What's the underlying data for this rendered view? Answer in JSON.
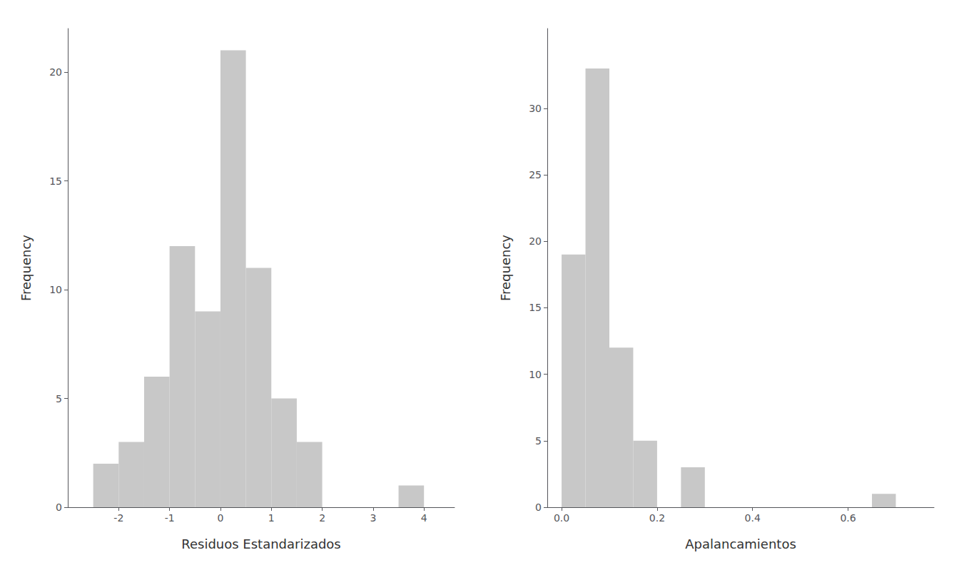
{
  "chart_data": [
    {
      "type": "histogram",
      "bins": [
        -2.5,
        -2.0,
        -1.5,
        -1.0,
        -0.5,
        0.0,
        0.5,
        1.0,
        1.5,
        2.0,
        3.5,
        4.0
      ],
      "values": [
        2,
        3,
        6,
        12,
        9,
        21,
        11,
        5,
        3,
        0,
        1
      ],
      "xlabel": "Residuos Estandarizados",
      "ylabel": "Frequency",
      "xlim": [
        -3.0,
        4.6
      ],
      "ylim": [
        0,
        22
      ],
      "xticks": [
        -2,
        -1,
        0,
        1,
        2,
        3,
        4
      ],
      "yticks": [
        0,
        5,
        10,
        15,
        20
      ],
      "color": "#c8c8c8",
      "grid": false
    },
    {
      "type": "histogram",
      "bins": [
        0.0,
        0.05,
        0.1,
        0.15,
        0.2,
        0.25,
        0.3,
        0.65,
        0.7
      ],
      "values": [
        19,
        33,
        12,
        5,
        0,
        3,
        0,
        1
      ],
      "xlabel": "Apalancamientos",
      "ylabel": "Frequency",
      "xlim": [
        -0.03,
        0.78
      ],
      "ylim": [
        0,
        36
      ],
      "xticks": [
        {
          "value": 0.0,
          "label": "0.0"
        },
        0.2,
        0.4,
        0.6
      ],
      "yticks": [
        0,
        5,
        10,
        15,
        20,
        25,
        30
      ],
      "color": "#c8c8c8",
      "grid": false
    }
  ]
}
